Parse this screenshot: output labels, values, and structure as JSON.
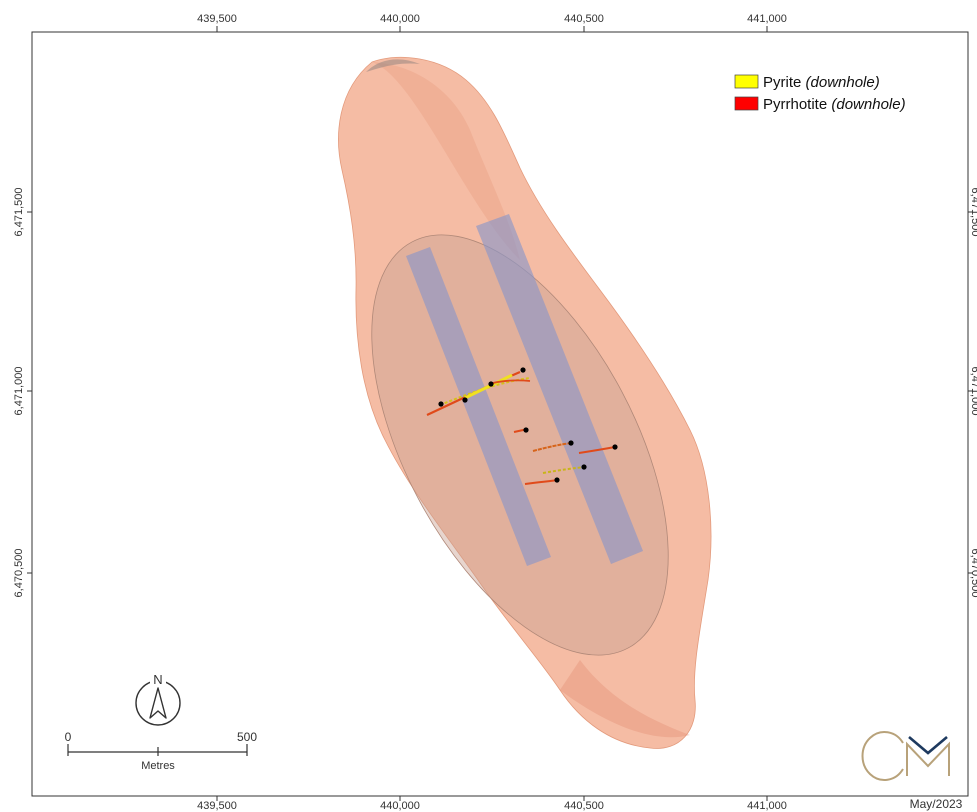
{
  "axes": {
    "easting_ticks": [
      "439,500",
      "440,000",
      "440,500",
      "441,000"
    ],
    "northing_ticks": [
      "6,471,500",
      "6,471,000",
      "6,470,500"
    ]
  },
  "legend": {
    "items": [
      {
        "name": "Pyrite",
        "qualifier": "(downhole)",
        "color": "#ffff00"
      },
      {
        "name": "Pyrrhotite",
        "qualifier": "(downhole)",
        "color": "#ff0000"
      }
    ]
  },
  "north_arrow": {
    "label": "N",
    "icon": "north-arrow-icon"
  },
  "scale_bar": {
    "start": "0",
    "end": "500",
    "unit": "Metres"
  },
  "logo": {
    "text": "CM",
    "color": "#b8a27a",
    "accent": "#1e3a5f"
  },
  "date": "May/2023",
  "colors": {
    "shell": "#f2a586",
    "ellipse": "#c9a192",
    "zones": "#8c96c8",
    "frame": "#333333"
  }
}
